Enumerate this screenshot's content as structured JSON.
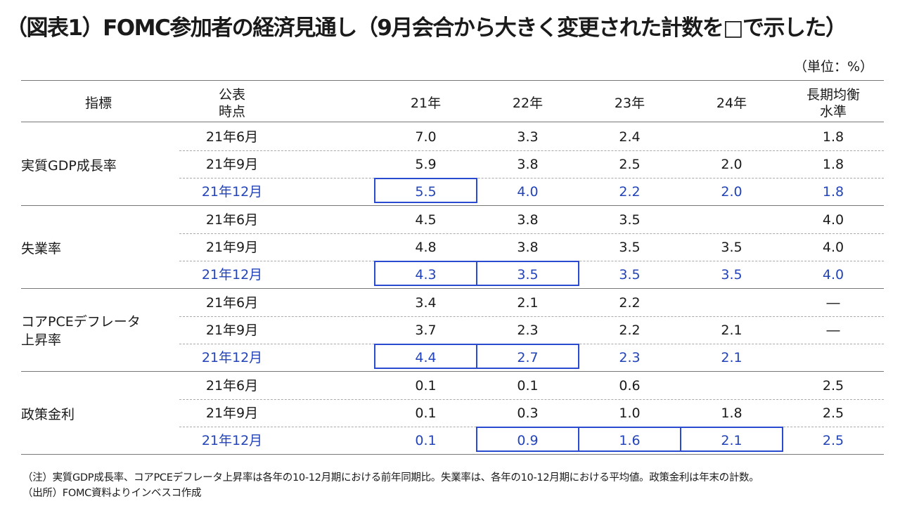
{
  "title": "（図表1）FOMC参加者の経済見通し（9月会合から大きく変更された計数を□で示した）",
  "unit": "（単位：%）",
  "header": {
    "indicator": "指標",
    "published_line1": "公表",
    "published_line2": "時点",
    "col_21": "21年",
    "col_22": "22年",
    "col_23": "23年",
    "col_24": "24年",
    "longrun_line1": "長期均衡",
    "longrun_line2": "水準"
  },
  "groups": [
    {
      "indicator_line1": "実質GDP成長率",
      "indicator_line2": "",
      "rows": [
        {
          "date": "21年6月",
          "v21": "7.0",
          "v22": "3.3",
          "v23": "2.4",
          "v24": "",
          "lr": "1.8"
        },
        {
          "date": "21年9月",
          "v21": "5.9",
          "v22": "3.8",
          "v23": "2.5",
          "v24": "2.0",
          "lr": "1.8"
        },
        {
          "date": "21年12月",
          "v21": "5.5",
          "v22": "4.0",
          "v23": "2.2",
          "v24": "2.0",
          "lr": "1.8"
        }
      ]
    },
    {
      "indicator_line1": "失業率",
      "indicator_line2": "",
      "rows": [
        {
          "date": "21年6月",
          "v21": "4.5",
          "v22": "3.8",
          "v23": "3.5",
          "v24": "",
          "lr": "4.0"
        },
        {
          "date": "21年9月",
          "v21": "4.8",
          "v22": "3.8",
          "v23": "3.5",
          "v24": "3.5",
          "lr": "4.0"
        },
        {
          "date": "21年12月",
          "v21": "4.3",
          "v22": "3.5",
          "v23": "3.5",
          "v24": "3.5",
          "lr": "4.0"
        }
      ]
    },
    {
      "indicator_line1": "コアPCEデフレータ",
      "indicator_line2": "上昇率",
      "rows": [
        {
          "date": "21年6月",
          "v21": "3.4",
          "v22": "2.1",
          "v23": "2.2",
          "v24": "",
          "lr": "―"
        },
        {
          "date": "21年9月",
          "v21": "3.7",
          "v22": "2.3",
          "v23": "2.2",
          "v24": "2.1",
          "lr": "―"
        },
        {
          "date": "21年12月",
          "v21": "4.4",
          "v22": "2.7",
          "v23": "2.3",
          "v24": "2.1",
          "lr": ""
        }
      ]
    },
    {
      "indicator_line1": "政策金利",
      "indicator_line2": "",
      "rows": [
        {
          "date": "21年6月",
          "v21": "0.1",
          "v22": "0.1",
          "v23": "0.6",
          "v24": "",
          "lr": "2.5"
        },
        {
          "date": "21年9月",
          "v21": "0.1",
          "v22": "0.3",
          "v23": "1.0",
          "v24": "1.8",
          "lr": "2.5"
        },
        {
          "date": "21年12月",
          "v21": "0.1",
          "v22": "0.9",
          "v23": "1.6",
          "v24": "2.1",
          "lr": "2.5"
        }
      ]
    }
  ],
  "highlight_color": "#2a4bd0",
  "latest_row_color": "#2343b8",
  "notes": {
    "note": "（注）実質GDP成長率、コアPCEデフレータ上昇率は各年の10-12月期における前年同期比。失業率は、各年の10-12月期における平均値。政策金利は年末の計数。",
    "source": "（出所）FOMC資料よりインベスコ作成"
  }
}
